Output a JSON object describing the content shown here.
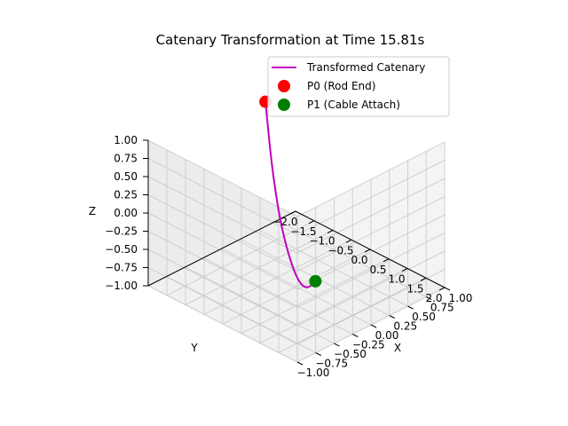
{
  "chart_data": {
    "type": "line3d",
    "title": "Catenary Transformation at Time 15.81s",
    "xlabel": "X",
    "ylabel": "Y",
    "zlabel": "Z",
    "xlim": [
      -1.0,
      1.0
    ],
    "ylim": [
      -2.0,
      2.0
    ],
    "zlim": [
      -1.0,
      1.0
    ],
    "xticks": [
      "−1.00",
      "−0.75",
      "−0.50",
      "−0.25",
      "0.00",
      "0.25",
      "0.50",
      "0.75",
      "1.00"
    ],
    "yticks": [
      "−2.0",
      "−1.5",
      "−1.0",
      "−0.5",
      "0.0",
      "0.5",
      "1.0",
      "1.5",
      "2.0"
    ],
    "zticks": [
      "−1.00",
      "−0.75",
      "−0.50",
      "−0.25",
      "0.00",
      "0.25",
      "0.50",
      "0.75",
      "1.00"
    ],
    "grid": true,
    "legend_position": "top-right",
    "series": [
      {
        "name": "Transformed Catenary",
        "kind": "line",
        "color": "#bf00bf",
        "points": [
          [
            -0.43,
            -1.68,
            0.88
          ],
          [
            -0.27,
            -1.2,
            0.22
          ],
          [
            -0.12,
            -0.68,
            -0.33
          ],
          [
            0.0,
            -0.18,
            -0.67
          ],
          [
            0.13,
            0.32,
            -0.79
          ],
          [
            0.27,
            0.82,
            -0.68
          ],
          [
            0.4,
            1.3,
            -0.38
          ]
        ]
      },
      {
        "name": "P0 (Rod End)",
        "kind": "point",
        "color": "#ff0000",
        "point": [
          -0.43,
          -1.68,
          0.88
        ]
      },
      {
        "name": "P1 (Cable Attach)",
        "kind": "point",
        "color": "#008000",
        "point": [
          0.4,
          1.3,
          -0.38
        ]
      }
    ]
  }
}
